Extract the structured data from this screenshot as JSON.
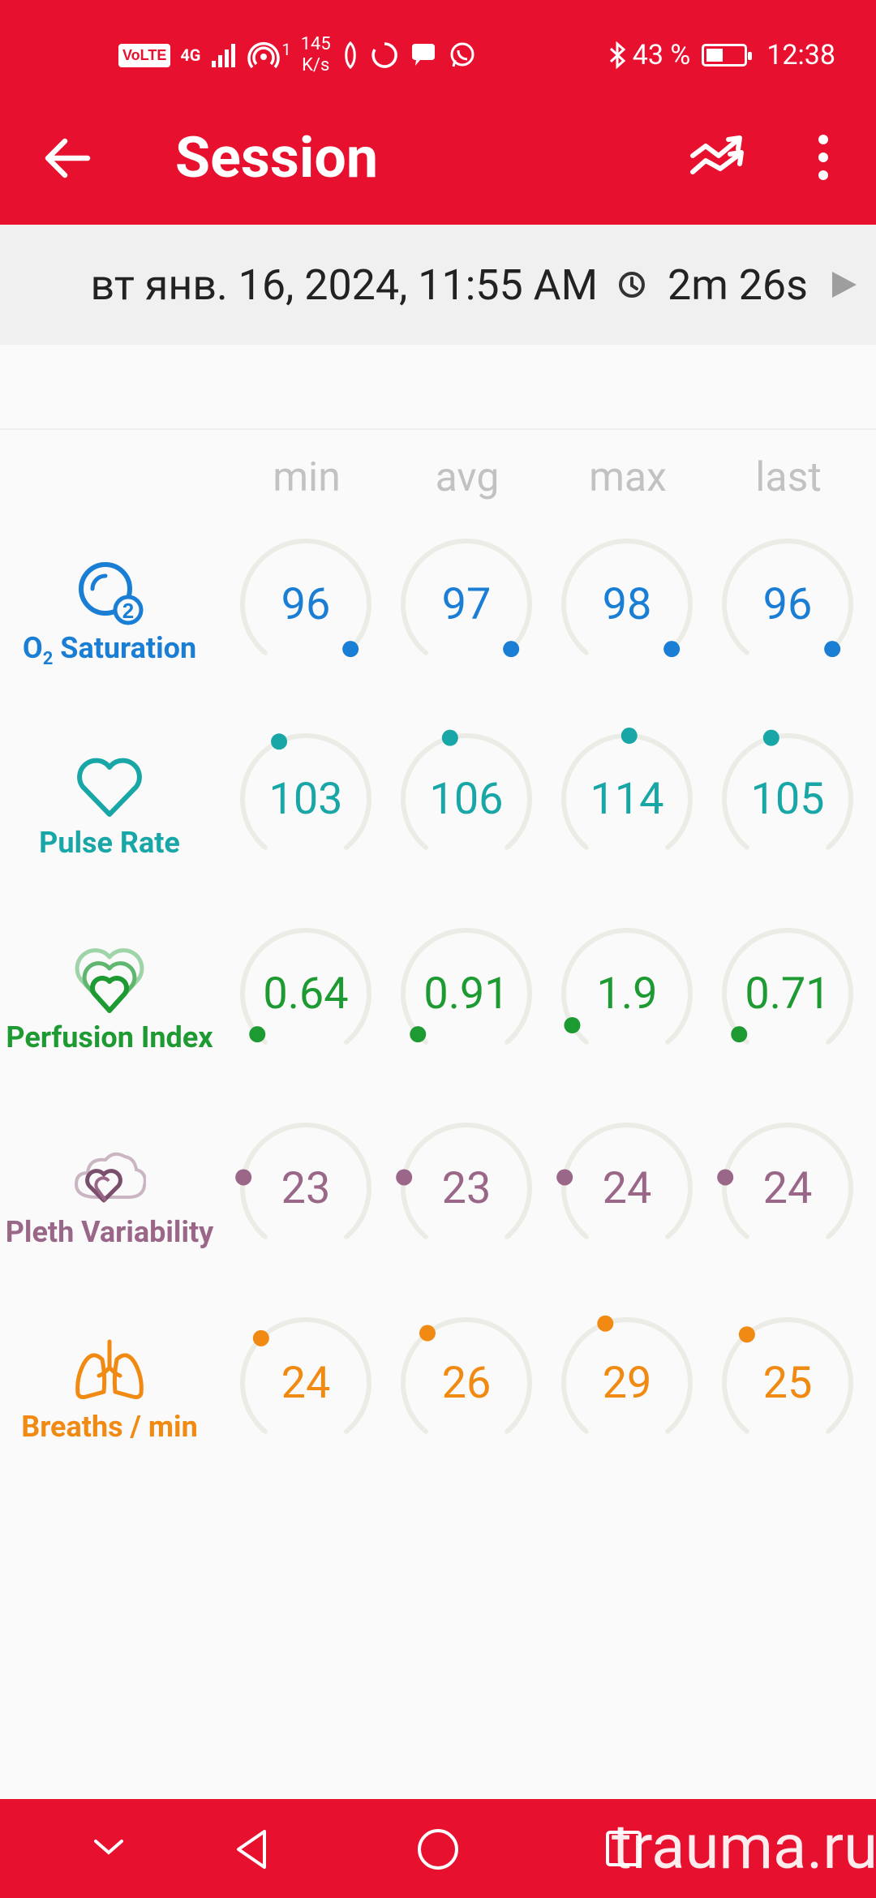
{
  "status_bar": {
    "volte": "VoLTE",
    "network": "4G",
    "hotspot_count": "1",
    "speed_value": "145",
    "speed_unit": "K/s",
    "battery": "43 %",
    "time": "12:38"
  },
  "app_bar": {
    "title": "Session",
    "back_icon": "arrow-left-icon",
    "trend_icon": "trends-icon",
    "more_icon": "more-vert-icon"
  },
  "session": {
    "date": "вт янв. 16, 2024, 11:55 AM",
    "duration": "2m 26s"
  },
  "columns": [
    "min",
    "avg",
    "max",
    "last"
  ],
  "metrics": [
    {
      "label_main": "O",
      "label_sub": "2",
      "label_rest": " Saturation",
      "color": "#1a7fd4",
      "icon": "o2-bubble-icon",
      "values": [
        "96",
        "97",
        "98",
        "96"
      ]
    },
    {
      "label": "Pulse Rate",
      "color": "#19a6a6",
      "icon": "heart-icon",
      "values": [
        "103",
        "106",
        "114",
        "105"
      ]
    },
    {
      "label": "Perfusion Index",
      "color": "#1e9a32",
      "icon": "layered-hearts-icon",
      "values": [
        "0.64",
        "0.91",
        "1.9",
        "0.71"
      ]
    },
    {
      "label": "Pleth Variability",
      "color": "#9a6788",
      "icon": "pleth-hearts-icon",
      "values": [
        "23",
        "23",
        "24",
        "24"
      ]
    },
    {
      "label": "Breaths / min",
      "color": "#f18a12",
      "icon": "lungs-icon",
      "values": [
        "24",
        "26",
        "29",
        "25"
      ]
    }
  ],
  "watermark": "trauma.ru"
}
